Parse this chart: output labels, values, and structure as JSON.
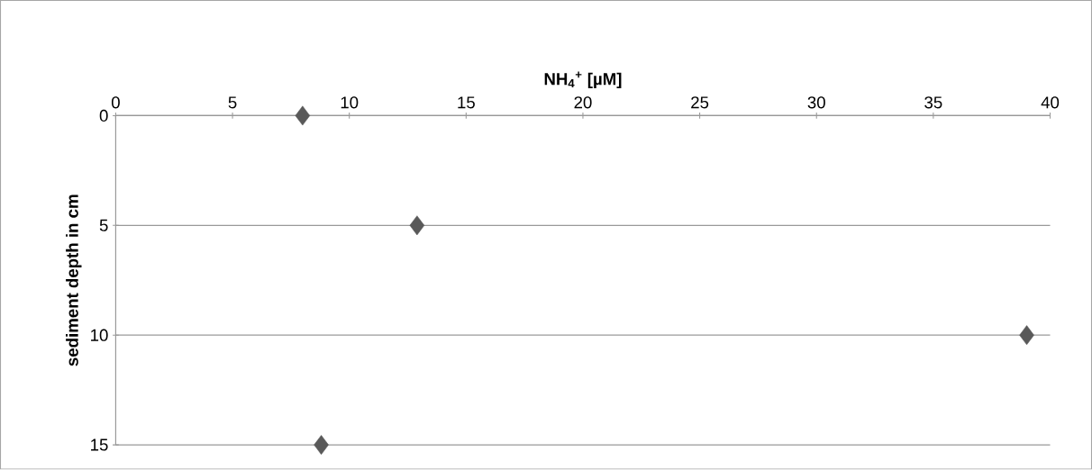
{
  "chart_data": {
    "type": "scatter",
    "xlabel": "NH$_{4}$$^{+}$ [µM]",
    "ylabel": "sediment depth in cm",
    "x": [
      8,
      12.9,
      39,
      8.8
    ],
    "series": [
      {
        "color": "#595959",
        "values": [
          0,
          5,
          10,
          15
        ]
      }
    ],
    "marker": "diamond",
    "xlim": [
      0,
      40
    ],
    "xticks": [
      0,
      5,
      10,
      15,
      20,
      25,
      30,
      35,
      40
    ],
    "ylim": [
      15,
      0
    ],
    "yticks": [
      0,
      5,
      10,
      15
    ],
    "grid": "y"
  }
}
